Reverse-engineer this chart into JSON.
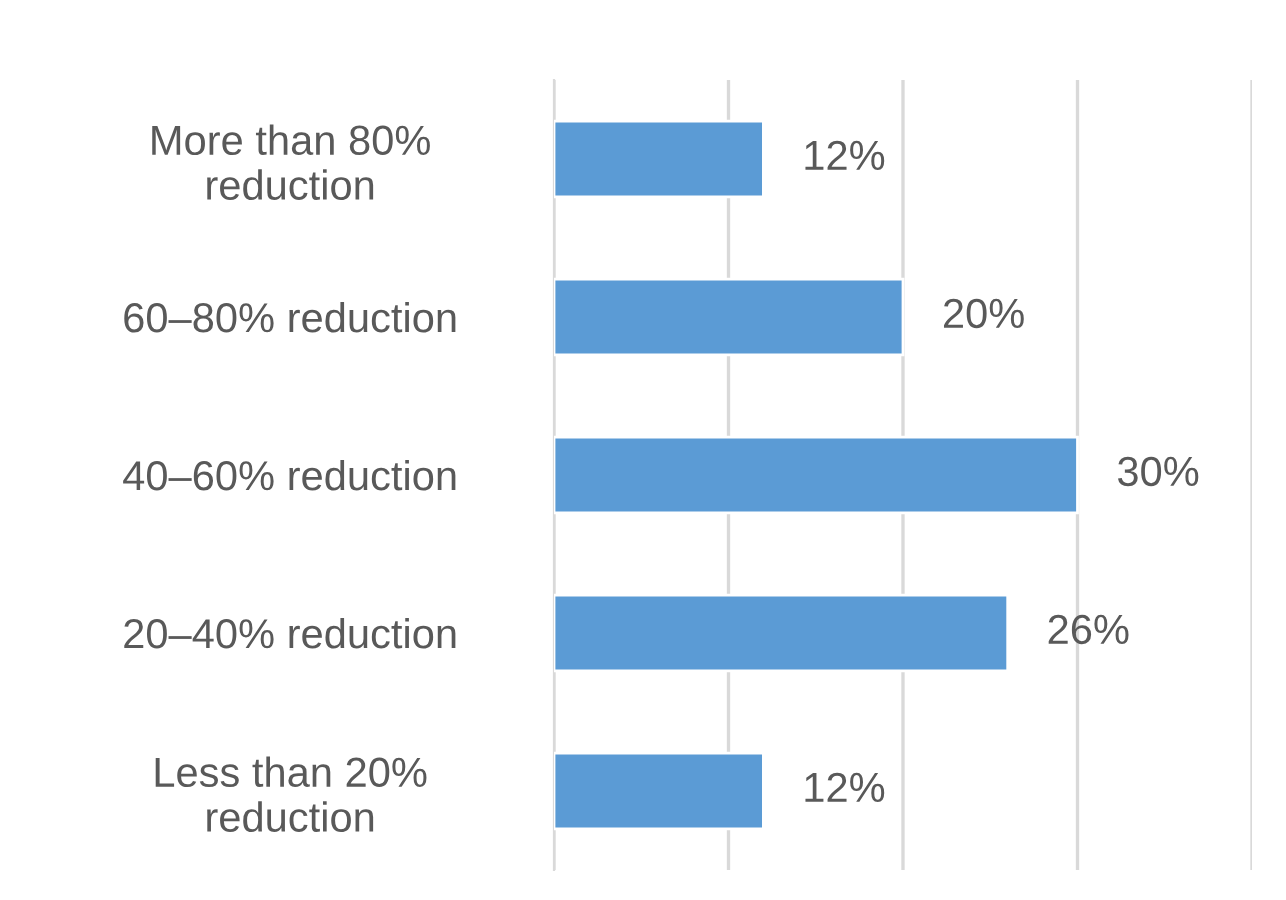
{
  "chart_data": {
    "type": "bar",
    "orientation": "horizontal",
    "categories": [
      "More than 80%\nreduction",
      "60–80% reduction",
      "40–60% reduction",
      "20–40% reduction",
      "Less than 20%\nreduction"
    ],
    "values": [
      12,
      20,
      30,
      26,
      12
    ],
    "value_labels": [
      "12%",
      "20%",
      "30%",
      "26%",
      "12%"
    ],
    "color": "#5b9bd5",
    "xlim": [
      0,
      40
    ],
    "xticks": [
      {
        "value": 0,
        "label": null
      },
      {
        "value": 10,
        "label": null
      },
      {
        "value": 20,
        "label": null
      },
      {
        "value": 30,
        "label": null
      },
      {
        "value": 40,
        "label": null
      }
    ],
    "tick_labels": "y",
    "grid": "x",
    "legend": false
  }
}
